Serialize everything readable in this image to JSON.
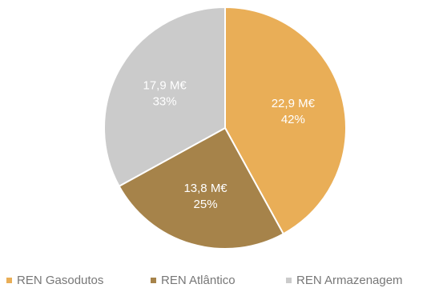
{
  "chart_data": {
    "type": "pie",
    "title": "",
    "slices": [
      {
        "name": "REN Gasodutos",
        "value_label": "22,9 M€",
        "percent": 42,
        "percent_label": "42%",
        "color": "#E9AE57"
      },
      {
        "name": "REN Atlântico",
        "value_label": "13,8 M€",
        "percent": 25,
        "percent_label": "25%",
        "color": "#A6834A"
      },
      {
        "name": "REN Armazenagem",
        "value_label": "17,9 M€",
        "percent": 33,
        "percent_label": "33%",
        "color": "#CBCBCB"
      }
    ],
    "legend_position": "bottom"
  }
}
